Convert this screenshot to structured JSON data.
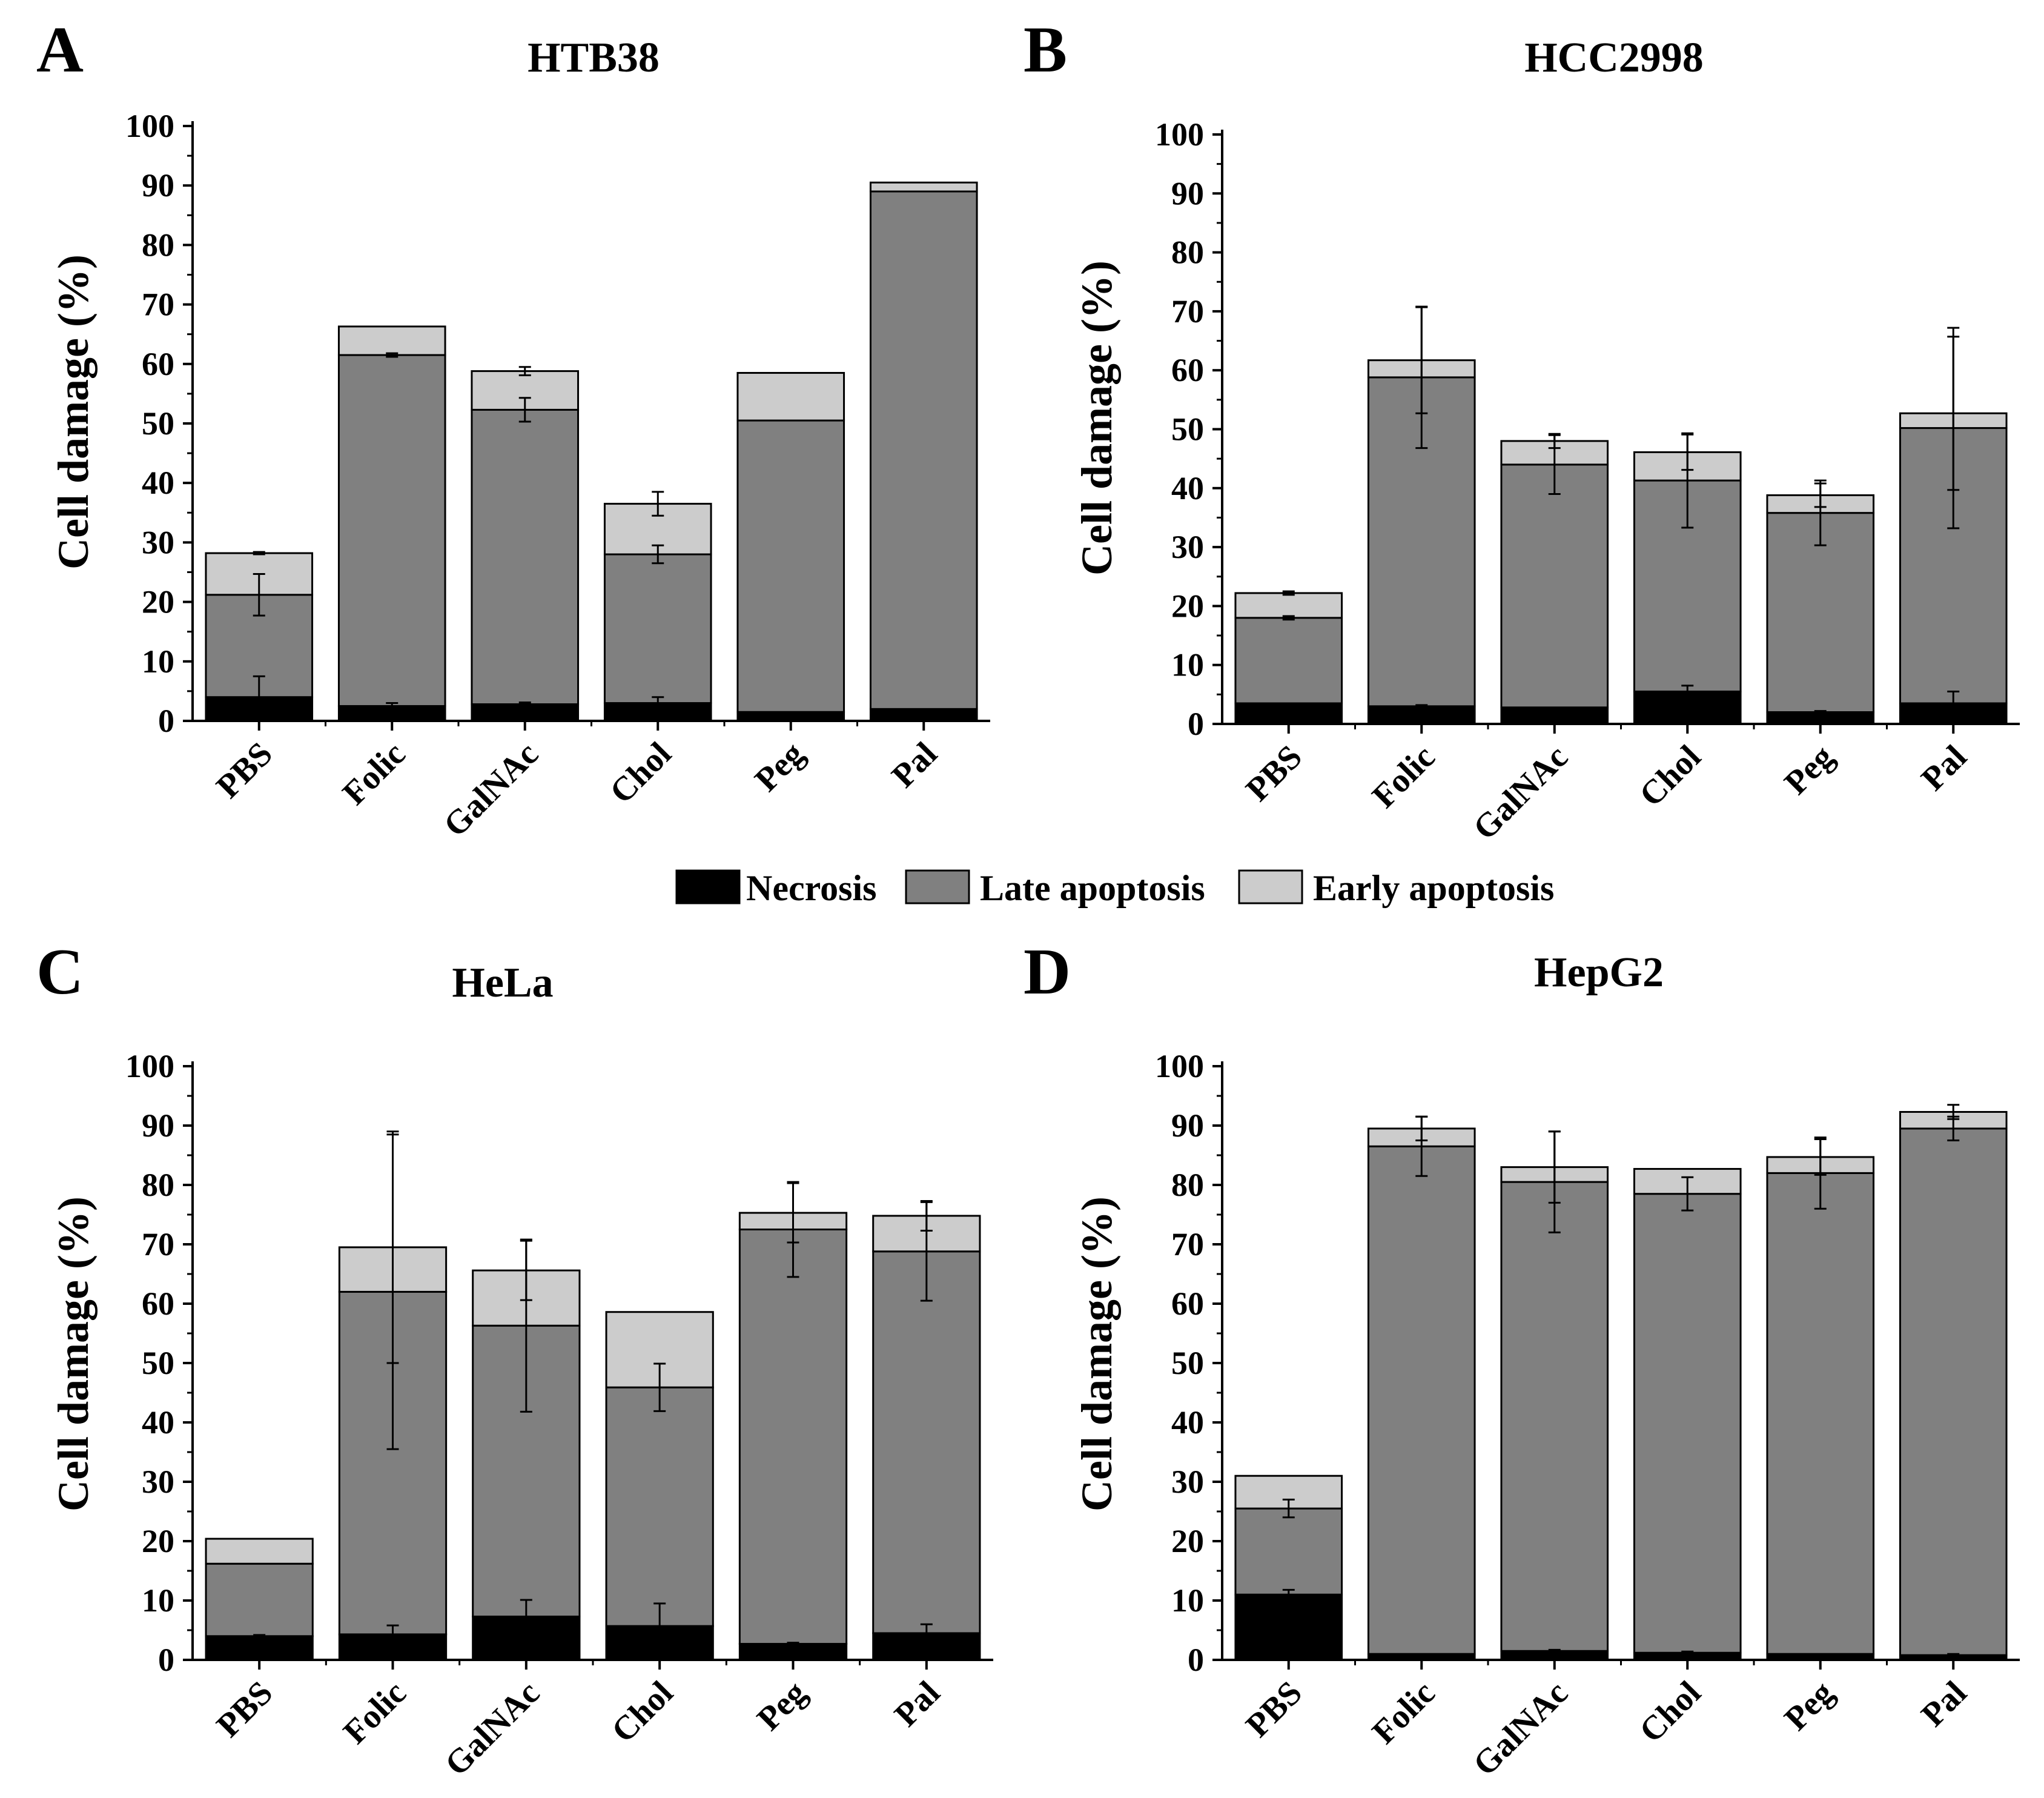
{
  "legend": {
    "items": [
      {
        "label": "Necrosis",
        "color": "#000000"
      },
      {
        "label": "Late apoptosis",
        "color": "#808080"
      },
      {
        "label": "Early apoptosis",
        "color": "#cccccc"
      }
    ]
  },
  "chart_data": [
    {
      "panel": "A",
      "title": "HTB38",
      "type": "bar",
      "stacked": true,
      "ylabel": "Cell damage (%)",
      "ylim": [
        0,
        100
      ],
      "yticks": [
        "0",
        "10",
        "20",
        "30",
        "40",
        "50",
        "60",
        "70",
        "80",
        "90",
        "100"
      ],
      "categories": [
        "PBS",
        "Folic",
        "GalNAc",
        "Chol",
        "Peg",
        "Pal"
      ],
      "series": [
        {
          "name": "Necrosis",
          "color": "#000000",
          "values": [
            4,
            2.5,
            2.8,
            3,
            1.5,
            2
          ],
          "errors": [
            3.5,
            0.5,
            0.3,
            1,
            0,
            0
          ]
        },
        {
          "name": "Late apoptosis",
          "color": "#808080",
          "values": [
            17.2,
            59,
            49.5,
            25,
            49,
            87
          ],
          "errors": [
            3.5,
            0.3,
            2,
            1.5,
            0,
            0
          ]
        },
        {
          "name": "Early apoptosis",
          "color": "#cccccc",
          "values": [
            7,
            4.8,
            6.5,
            8.5,
            8,
            1.5
          ],
          "errors": [
            0.2,
            0,
            0.7,
            2,
            0,
            0
          ]
        }
      ]
    },
    {
      "panel": "B",
      "title": "HCC2998",
      "type": "bar",
      "stacked": true,
      "ylabel": "Cell damage (%)",
      "ylim": [
        0,
        100
      ],
      "yticks": [
        "0",
        "10",
        "20",
        "30",
        "40",
        "50",
        "60",
        "70",
        "80",
        "90",
        "100"
      ],
      "categories": [
        "PBS",
        "Folic",
        "GalNAc",
        "Chol",
        "Peg",
        "Pal"
      ],
      "series": [
        {
          "name": "Necrosis",
          "color": "#000000",
          "values": [
            3.5,
            3,
            2.8,
            5.5,
            2,
            3.5
          ],
          "errors": [
            0,
            0.2,
            0,
            1,
            0.2,
            2
          ]
        },
        {
          "name": "Late apoptosis",
          "color": "#808080",
          "values": [
            14.5,
            55.8,
            41.2,
            35.8,
            33.8,
            46.7
          ],
          "errors": [
            0.3,
            12,
            5,
            8,
            5.5,
            17
          ]
        },
        {
          "name": "Early apoptosis",
          "color": "#cccccc",
          "values": [
            4.2,
            2.9,
            4,
            4.8,
            3,
            2.5
          ],
          "errors": [
            0.3,
            9,
            1.2,
            3,
            2,
            13
          ]
        }
      ]
    },
    {
      "panel": "C",
      "title": "HeLa",
      "type": "bar",
      "stacked": true,
      "ylabel": "Cell damage (%)",
      "ylim": [
        0,
        100
      ],
      "yticks": [
        "0",
        "10",
        "20",
        "30",
        "40",
        "50",
        "60",
        "70",
        "80",
        "90",
        "100"
      ],
      "categories": [
        "PBS",
        "Folic",
        "GalNAc",
        "Chol",
        "Peg",
        "Pal"
      ],
      "series": [
        {
          "name": "Necrosis",
          "color": "#000000",
          "values": [
            4,
            4.3,
            7.3,
            5.7,
            2.7,
            4.5
          ],
          "errors": [
            0.2,
            1.5,
            2.8,
            3.8,
            0.2,
            1.5
          ]
        },
        {
          "name": "Late apoptosis",
          "color": "#808080",
          "values": [
            12.2,
            57.7,
            49,
            40.2,
            69.8,
            64.3
          ],
          "errors": [
            0,
            26.5,
            14.5,
            4,
            8,
            8.3
          ]
        },
        {
          "name": "Early apoptosis",
          "color": "#cccccc",
          "values": [
            4.2,
            7.5,
            9.3,
            12.7,
            2.8,
            6
          ],
          "errors": [
            0,
            19.5,
            5,
            0,
            5,
            2.5
          ]
        }
      ]
    },
    {
      "panel": "D",
      "title": "HepG2",
      "type": "bar",
      "stacked": true,
      "ylabel": "Cell damage (%)",
      "ylim": [
        0,
        100
      ],
      "yticks": [
        "0",
        "10",
        "20",
        "30",
        "40",
        "50",
        "60",
        "70",
        "80",
        "90",
        "100"
      ],
      "categories": [
        "PBS",
        "Folic",
        "GalNAc",
        "Chol",
        "Peg",
        "Pal"
      ],
      "series": [
        {
          "name": "Necrosis",
          "color": "#000000",
          "values": [
            11,
            1,
            1.5,
            1.2,
            1,
            0.8
          ],
          "errors": [
            0.8,
            0,
            0.2,
            0.2,
            0,
            0.2
          ]
        },
        {
          "name": "Late apoptosis",
          "color": "#808080",
          "values": [
            14.5,
            85.5,
            79,
            77.3,
            81,
            88.7
          ],
          "errors": [
            1.5,
            5,
            8.5,
            2.8,
            6,
            2
          ]
        },
        {
          "name": "Early apoptosis",
          "color": "#cccccc",
          "values": [
            5.5,
            3,
            2.5,
            4.2,
            2.7,
            2.8
          ],
          "errors": [
            0,
            2,
            6,
            0,
            3,
            1.2
          ]
        }
      ]
    }
  ]
}
